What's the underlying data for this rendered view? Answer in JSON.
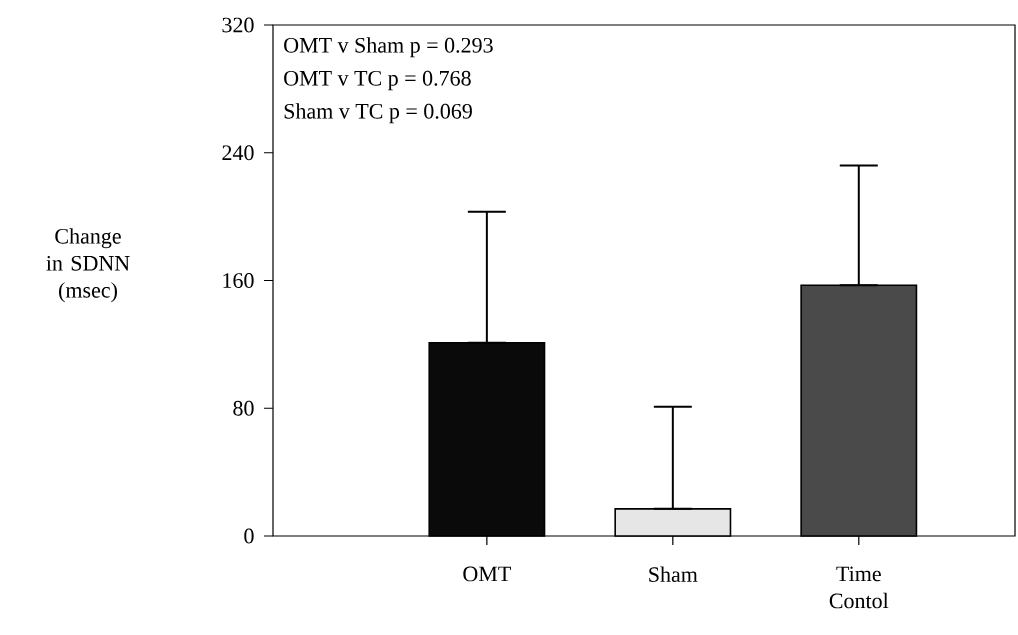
{
  "chart_data": {
    "type": "bar",
    "ylabel": "Change in SDNN (msec)",
    "categories": [
      "OMT",
      "Sham",
      "Time Contol"
    ],
    "values": [
      121,
      17,
      157
    ],
    "errors": [
      [
        121,
        203
      ],
      [
        17,
        81
      ],
      [
        157,
        232
      ]
    ],
    "colors": [
      "#0a0a0a",
      "#e6e6e6",
      "#4a4a4a"
    ],
    "ylim": [
      0,
      320
    ],
    "yticks": [
      0,
      80,
      160,
      240,
      320
    ],
    "annotations": [
      "OMT v Sham p = 0.293",
      "OMT v TC p = 0.768",
      "Sham v TC p = 0.069"
    ]
  }
}
